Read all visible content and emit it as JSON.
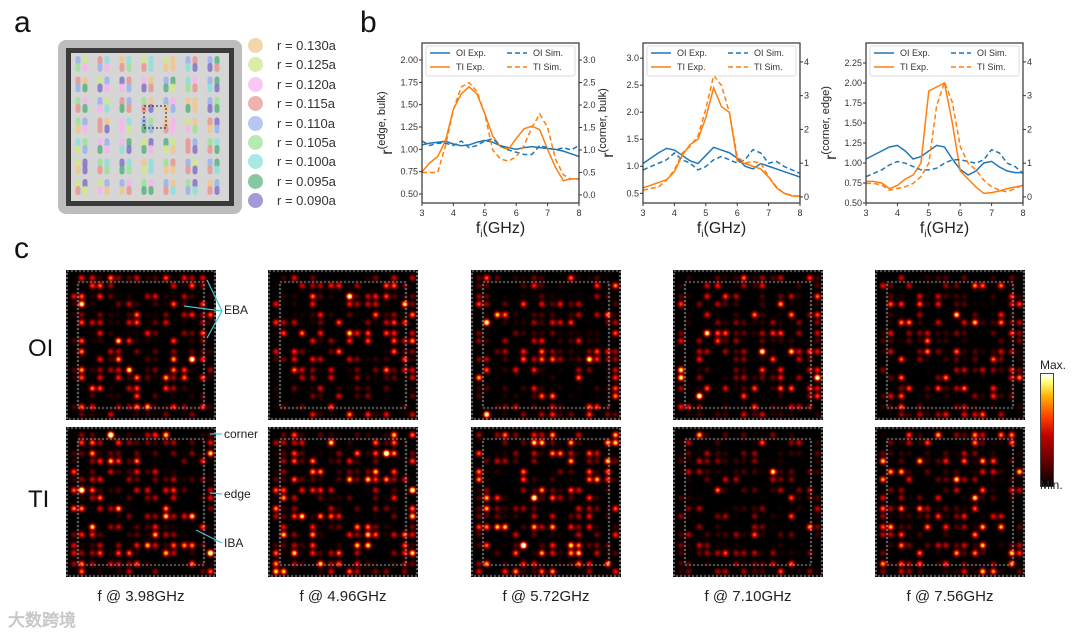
{
  "panel_labels": {
    "a": "a",
    "b": "b",
    "c": "c"
  },
  "panel_a": {
    "legend": [
      {
        "label": "r = 0.130a",
        "color": "#f0c890"
      },
      {
        "label": "r = 0.125a",
        "color": "#cfe88a"
      },
      {
        "label": "r = 0.120a",
        "color": "#f7b5ee"
      },
      {
        "label": "r = 0.115a",
        "color": "#e89a95"
      },
      {
        "label": "r = 0.110a",
        "color": "#9db5ec"
      },
      {
        "label": "r = 0.105a",
        "color": "#9fe29a"
      },
      {
        "label": "r = 0.100a",
        "color": "#8fe0da"
      },
      {
        "label": "r = 0.095a",
        "color": "#5fb585"
      },
      {
        "label": "r = 0.090a",
        "color": "#8878c8"
      }
    ]
  },
  "chart_data": [
    {
      "type": "line",
      "title": "",
      "xlabel": "f",
      "xlabel_sub": "i",
      "xlabel_unit": "(GHz)",
      "ylabel": "r",
      "ylabel_sup": "(edge, bulk)",
      "x": [
        3,
        3.25,
        3.5,
        3.75,
        4,
        4.25,
        4.5,
        4.75,
        5,
        5.25,
        5.5,
        5.75,
        6,
        6.25,
        6.5,
        6.75,
        7,
        7.25,
        7.5,
        7.75,
        8
      ],
      "xlim": [
        3,
        8
      ],
      "xticks": [
        "3",
        "4",
        "5",
        "6",
        "7",
        "8"
      ],
      "ylim_left": [
        0.4,
        2.19
      ],
      "yticks_left": [
        "0.50",
        "0.75",
        "1.00",
        "1.25",
        "1.50",
        "1.75",
        "2.00"
      ],
      "ylim_right": [
        -0.18,
        3.38
      ],
      "yticks_right": [
        "0.0",
        "0.5",
        "1.0",
        "1.5",
        "2.0",
        "2.5",
        "3.0"
      ],
      "series": [
        {
          "name": "OI Exp.",
          "axis": "left",
          "color": "#1f77b4",
          "dash": false,
          "values": [
            1.05,
            1.07,
            1.08,
            1.09,
            1.06,
            1.04,
            1.05,
            1.08,
            1.1,
            1.08,
            1.04,
            1.02,
            1.0,
            1.02,
            1.03,
            1.02,
            1.01,
            1.0,
            0.98,
            0.95,
            0.92
          ]
        },
        {
          "name": "TI Exp.",
          "axis": "left",
          "color": "#ff7f0e",
          "dash": false,
          "values": [
            0.75,
            0.85,
            0.92,
            1.1,
            1.45,
            1.62,
            1.7,
            1.62,
            1.4,
            1.15,
            1.03,
            1.0,
            1.12,
            1.23,
            1.26,
            1.22,
            1.0,
            0.8,
            0.65,
            0.67,
            0.67
          ]
        },
        {
          "name": "OI Sim.",
          "axis": "right",
          "color": "#1f77b4",
          "dash": true,
          "values": [
            1.2,
            1.1,
            1.15,
            1.15,
            1.1,
            1.2,
            1.05,
            1.1,
            1.2,
            1.25,
            1.1,
            1.0,
            0.95,
            0.9,
            0.9,
            1.1,
            1.05,
            1.0,
            1.05,
            1.0,
            1.1
          ]
        },
        {
          "name": "TI Sim.",
          "axis": "right",
          "color": "#ff7f0e",
          "dash": true,
          "values": [
            0.5,
            0.5,
            0.5,
            1.1,
            1.9,
            2.4,
            2.5,
            2.3,
            1.8,
            1.0,
            0.8,
            0.75,
            0.85,
            1.1,
            1.5,
            1.8,
            1.5,
            0.8,
            0.45,
            0.35,
            0.35
          ]
        }
      ]
    },
    {
      "type": "line",
      "title": "",
      "xlabel": "f",
      "xlabel_sub": "i",
      "xlabel_unit": "(GHz)",
      "ylabel": "r",
      "ylabel_sup": "(corner, bulk)",
      "x": [
        3,
        3.25,
        3.5,
        3.75,
        4,
        4.25,
        4.5,
        4.75,
        5,
        5.25,
        5.5,
        5.75,
        6,
        6.25,
        6.5,
        6.75,
        7,
        7.25,
        7.5,
        7.75,
        8
      ],
      "xlim": [
        3,
        8
      ],
      "xticks": [
        "3",
        "4",
        "5",
        "6",
        "7",
        "8"
      ],
      "ylim_left": [
        0.32,
        3.28
      ],
      "yticks_left": [
        "0.5",
        "1.0",
        "1.5",
        "2.0",
        "2.5",
        "3.0"
      ],
      "ylim_right": [
        -0.18,
        4.56
      ],
      "yticks_right": [
        "0",
        "1",
        "2",
        "3",
        "4"
      ],
      "series": [
        {
          "name": "OI Exp.",
          "axis": "left",
          "color": "#1f77b4",
          "dash": false,
          "values": [
            1.05,
            1.15,
            1.25,
            1.33,
            1.3,
            1.2,
            1.1,
            1.05,
            1.2,
            1.35,
            1.3,
            1.25,
            1.15,
            1.0,
            0.95,
            1.05,
            1.0,
            0.95,
            0.9,
            0.85,
            0.8
          ]
        },
        {
          "name": "TI Exp.",
          "axis": "left",
          "color": "#ff7f0e",
          "dash": false,
          "values": [
            0.6,
            0.65,
            0.7,
            0.75,
            0.9,
            1.2,
            1.4,
            1.5,
            1.9,
            2.45,
            2.1,
            2.0,
            1.1,
            1.05,
            1.0,
            0.95,
            0.8,
            0.6,
            0.5,
            0.45,
            0.45
          ]
        },
        {
          "name": "OI Sim.",
          "axis": "right",
          "color": "#1f77b4",
          "dash": true,
          "values": [
            0.8,
            0.9,
            1.0,
            1.1,
            1.3,
            1.1,
            1.0,
            0.8,
            0.9,
            1.1,
            1.2,
            1.1,
            1.0,
            1.1,
            1.4,
            1.3,
            1.0,
            1.05,
            0.9,
            0.8,
            0.7
          ]
        },
        {
          "name": "TI Sim.",
          "axis": "right",
          "color": "#ff7f0e",
          "dash": true,
          "values": [
            0.2,
            0.25,
            0.3,
            0.5,
            0.8,
            1.3,
            1.5,
            1.8,
            2.6,
            3.6,
            3.3,
            2.5,
            1.2,
            1.0,
            1.05,
            1.0,
            0.6,
            0.3,
            0.1,
            0.05,
            0.0
          ]
        }
      ]
    },
    {
      "type": "line",
      "title": "",
      "xlabel": "f",
      "xlabel_sub": "i",
      "xlabel_unit": "(GHz)",
      "ylabel": "r",
      "ylabel_sup": "(corner, edge)",
      "x": [
        3,
        3.25,
        3.5,
        3.75,
        4,
        4.25,
        4.5,
        4.75,
        5,
        5.25,
        5.5,
        5.75,
        6,
        6.25,
        6.5,
        6.75,
        7,
        7.25,
        7.5,
        7.75,
        8
      ],
      "xlim": [
        3,
        8
      ],
      "xticks": [
        "3",
        "4",
        "5",
        "6",
        "7",
        "8"
      ],
      "ylim_left": [
        0.5,
        2.5
      ],
      "yticks_left": [
        "0.50",
        "0.75",
        "1.00",
        "1.25",
        "1.50",
        "1.75",
        "2.00",
        "2.25"
      ],
      "ylim_right": [
        -0.18,
        4.56
      ],
      "yticks_right": [
        "0",
        "1",
        "2",
        "3",
        "4"
      ],
      "series": [
        {
          "name": "OI Exp.",
          "axis": "left",
          "color": "#1f77b4",
          "dash": false,
          "values": [
            1.05,
            1.1,
            1.15,
            1.2,
            1.22,
            1.15,
            1.05,
            1.08,
            1.15,
            1.22,
            1.2,
            1.05,
            0.92,
            0.85,
            0.9,
            1.0,
            1.02,
            0.95,
            0.9,
            0.88,
            0.88
          ]
        },
        {
          "name": "TI Exp.",
          "axis": "left",
          "color": "#ff7f0e",
          "dash": false,
          "values": [
            0.77,
            0.77,
            0.75,
            0.68,
            0.72,
            0.8,
            0.85,
            1.0,
            1.9,
            1.95,
            2.0,
            1.5,
            0.9,
            0.8,
            0.7,
            0.62,
            0.63,
            0.65,
            0.68,
            0.7,
            0.72
          ]
        },
        {
          "name": "OI Sim.",
          "axis": "right",
          "color": "#1f77b4",
          "dash": true,
          "values": [
            0.6,
            0.7,
            0.8,
            0.95,
            1.05,
            1.0,
            0.9,
            0.8,
            0.8,
            0.85,
            1.0,
            1.1,
            1.1,
            1.05,
            1.0,
            1.1,
            1.4,
            1.3,
            1.0,
            0.9,
            0.7
          ]
        },
        {
          "name": "TI Sim.",
          "axis": "right",
          "color": "#ff7f0e",
          "dash": true,
          "values": [
            0.4,
            0.4,
            0.35,
            0.2,
            0.25,
            0.3,
            0.4,
            0.6,
            1.0,
            2.7,
            3.4,
            2.8,
            1.5,
            1.0,
            0.8,
            0.5,
            0.3,
            0.2,
            0.15,
            0.25,
            0.35
          ]
        }
      ]
    }
  ],
  "panel_c": {
    "rows": [
      "OI",
      "TI"
    ],
    "frequencies": [
      "f @ 3.98GHz",
      "f @ 4.96GHz",
      "f @ 5.72GHz",
      "f @ 7.10GHz",
      "f @ 7.56GHz"
    ],
    "annotations": {
      "eba": "EBA",
      "corner": "corner",
      "edge": "edge",
      "iba": "IBA"
    },
    "colorbar": {
      "max": "Max.",
      "min": "Min."
    },
    "accent": "#3cc6d8"
  },
  "watermark": "大数跨境"
}
